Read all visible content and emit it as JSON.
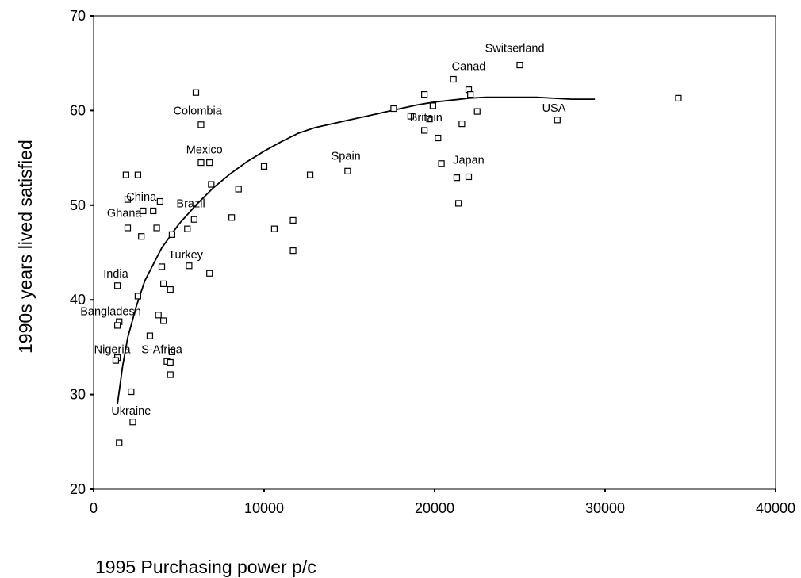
{
  "chart_data": {
    "type": "scatter",
    "title": "",
    "xlabel": "1995 Purchasing power p/c",
    "ylabel": "1990s years lived satisfied",
    "xlim": [
      0,
      40000
    ],
    "ylim": [
      20,
      70
    ],
    "xticks": [
      0,
      10000,
      20000,
      30000,
      40000
    ],
    "yticks": [
      20,
      30,
      40,
      50,
      60,
      70
    ],
    "grid": false,
    "legend": "none",
    "points": [
      {
        "x": 1900,
        "y": 53.2
      },
      {
        "x": 2600,
        "y": 53.2
      },
      {
        "x": 6000,
        "y": 61.9
      },
      {
        "x": 6300,
        "y": 58.5
      },
      {
        "x": 6300,
        "y": 54.5
      },
      {
        "x": 6800,
        "y": 54.5
      },
      {
        "x": 6900,
        "y": 52.2
      },
      {
        "x": 8500,
        "y": 51.7
      },
      {
        "x": 2000,
        "y": 50.6
      },
      {
        "x": 3900,
        "y": 50.4
      },
      {
        "x": 2900,
        "y": 49.4
      },
      {
        "x": 3500,
        "y": 49.4
      },
      {
        "x": 5900,
        "y": 48.5
      },
      {
        "x": 8100,
        "y": 48.7
      },
      {
        "x": 2000,
        "y": 47.6
      },
      {
        "x": 3700,
        "y": 47.6
      },
      {
        "x": 5500,
        "y": 47.5
      },
      {
        "x": 2800,
        "y": 46.7
      },
      {
        "x": 4600,
        "y": 46.9
      },
      {
        "x": 4000,
        "y": 43.5
      },
      {
        "x": 5600,
        "y": 43.6
      },
      {
        "x": 6800,
        "y": 42.8
      },
      {
        "x": 1400,
        "y": 41.5
      },
      {
        "x": 4100,
        "y": 41.7
      },
      {
        "x": 4500,
        "y": 41.1
      },
      {
        "x": 2600,
        "y": 40.4
      },
      {
        "x": 3800,
        "y": 38.4
      },
      {
        "x": 4100,
        "y": 37.8
      },
      {
        "x": 1500,
        "y": 37.7
      },
      {
        "x": 1400,
        "y": 37.3
      },
      {
        "x": 3300,
        "y": 36.2
      },
      {
        "x": 4600,
        "y": 34.5
      },
      {
        "x": 1400,
        "y": 33.9
      },
      {
        "x": 1300,
        "y": 33.6
      },
      {
        "x": 4300,
        "y": 33.5
      },
      {
        "x": 4500,
        "y": 33.4
      },
      {
        "x": 4500,
        "y": 32.1
      },
      {
        "x": 2200,
        "y": 30.3
      },
      {
        "x": 2300,
        "y": 27.1
      },
      {
        "x": 1500,
        "y": 24.9
      },
      {
        "x": 10000,
        "y": 54.1
      },
      {
        "x": 12700,
        "y": 53.2
      },
      {
        "x": 14900,
        "y": 53.6
      },
      {
        "x": 10600,
        "y": 47.5
      },
      {
        "x": 11700,
        "y": 48.4
      },
      {
        "x": 11700,
        "y": 45.2
      },
      {
        "x": 17600,
        "y": 60.2
      },
      {
        "x": 18600,
        "y": 59.4
      },
      {
        "x": 19400,
        "y": 61.7
      },
      {
        "x": 19700,
        "y": 59.1
      },
      {
        "x": 19900,
        "y": 60.5
      },
      {
        "x": 19400,
        "y": 57.9
      },
      {
        "x": 20200,
        "y": 57.1
      },
      {
        "x": 21100,
        "y": 63.3
      },
      {
        "x": 22000,
        "y": 62.2
      },
      {
        "x": 22100,
        "y": 61.7
      },
      {
        "x": 21600,
        "y": 58.6
      },
      {
        "x": 22500,
        "y": 59.9
      },
      {
        "x": 20400,
        "y": 54.4
      },
      {
        "x": 21300,
        "y": 52.9
      },
      {
        "x": 22000,
        "y": 53.0
      },
      {
        "x": 21400,
        "y": 50.2
      },
      {
        "x": 25000,
        "y": 64.8
      },
      {
        "x": 27200,
        "y": 59.0
      },
      {
        "x": 34300,
        "y": 61.3
      }
    ],
    "annotations": [
      {
        "text": "Switserland",
        "x": 24700,
        "y": 66.6
      },
      {
        "text": "Canad",
        "x": 22000,
        "y": 64.7
      },
      {
        "text": "Colombia",
        "x": 6100,
        "y": 60.0
      },
      {
        "text": "USA",
        "x": 27000,
        "y": 60.3
      },
      {
        "text": "Britain",
        "x": 19500,
        "y": 59.3
      },
      {
        "text": "Mexico",
        "x": 6500,
        "y": 55.9
      },
      {
        "text": "Spain",
        "x": 14800,
        "y": 55.2
      },
      {
        "text": "Japan",
        "x": 22000,
        "y": 54.8
      },
      {
        "text": "China",
        "x": 2800,
        "y": 50.9
      },
      {
        "text": "Brazil",
        "x": 5700,
        "y": 50.2
      },
      {
        "text": "Ghana",
        "x": 1800,
        "y": 49.2
      },
      {
        "text": "Turkey",
        "x": 5400,
        "y": 44.8
      },
      {
        "text": "India",
        "x": 1300,
        "y": 42.8
      },
      {
        "text": "Bangladesh",
        "x": 1000,
        "y": 38.8
      },
      {
        "text": "Nigeria",
        "x": 1100,
        "y": 34.8
      },
      {
        "text": "S-Africa",
        "x": 4000,
        "y": 34.8
      },
      {
        "text": "Ukraine",
        "x": 2200,
        "y": 28.3
      }
    ],
    "trendline": [
      {
        "x": 1400,
        "y": 29.0
      },
      {
        "x": 1700,
        "y": 33.0
      },
      {
        "x": 2000,
        "y": 36.0
      },
      {
        "x": 2500,
        "y": 39.3
      },
      {
        "x": 3000,
        "y": 42.0
      },
      {
        "x": 4000,
        "y": 45.5
      },
      {
        "x": 5000,
        "y": 48.0
      },
      {
        "x": 6000,
        "y": 50.0
      },
      {
        "x": 7000,
        "y": 51.8
      },
      {
        "x": 8000,
        "y": 53.3
      },
      {
        "x": 9000,
        "y": 54.6
      },
      {
        "x": 10000,
        "y": 55.7
      },
      {
        "x": 11000,
        "y": 56.7
      },
      {
        "x": 12000,
        "y": 57.6
      },
      {
        "x": 13000,
        "y": 58.2
      },
      {
        "x": 14000,
        "y": 58.6
      },
      {
        "x": 15000,
        "y": 59.0
      },
      {
        "x": 16000,
        "y": 59.4
      },
      {
        "x": 17000,
        "y": 59.8
      },
      {
        "x": 18000,
        "y": 60.2
      },
      {
        "x": 19000,
        "y": 60.6
      },
      {
        "x": 20000,
        "y": 60.9
      },
      {
        "x": 21000,
        "y": 61.1
      },
      {
        "x": 22000,
        "y": 61.3
      },
      {
        "x": 23000,
        "y": 61.4
      },
      {
        "x": 24000,
        "y": 61.4
      },
      {
        "x": 25000,
        "y": 61.4
      },
      {
        "x": 26000,
        "y": 61.4
      },
      {
        "x": 27000,
        "y": 61.3
      },
      {
        "x": 28000,
        "y": 61.2
      },
      {
        "x": 29400,
        "y": 61.2
      }
    ]
  }
}
